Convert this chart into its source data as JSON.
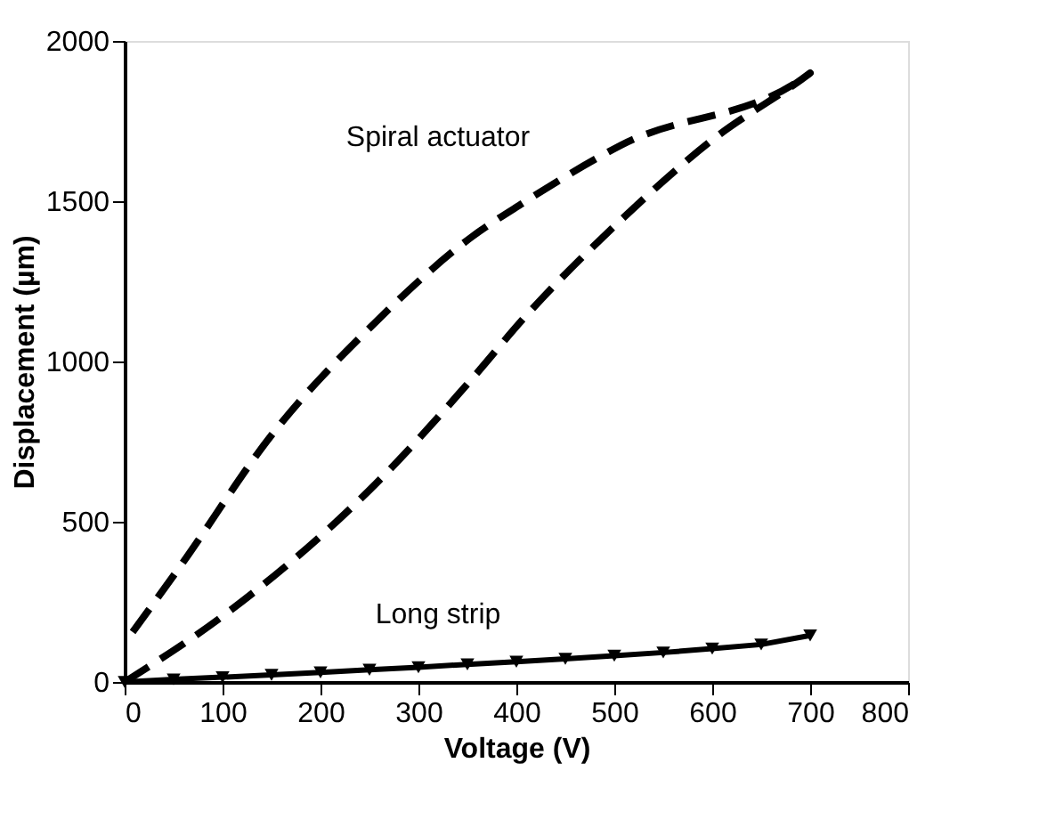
{
  "chart_data": {
    "type": "line",
    "xlabel": "Voltage (V)",
    "ylabel": "Displacement (µm)",
    "xlim": [
      0,
      800
    ],
    "xticks": [
      0,
      100,
      200,
      300,
      400,
      500,
      600,
      700,
      800
    ],
    "ylim": [
      0,
      2000
    ],
    "yticks": [
      0,
      500,
      1000,
      1500,
      2000
    ],
    "grid": false,
    "series": [
      {
        "color": "#000000",
        "line_style": "dashed",
        "marker": "none",
        "x": [
          0,
          103,
          256,
          355,
          407,
          507,
          600,
          700,
          507,
          407,
          355,
          256,
          150,
          57,
          0
        ],
        "values": [
          0,
          212,
          617,
          947,
          1133,
          1442,
          1691,
          1900,
          1675,
          1495,
          1390,
          1122,
          770,
          362,
          122
        ]
      },
      {
        "color": "#000000",
        "line_style": "solid",
        "marker": "triangle",
        "x": [
          0,
          50,
          100,
          150,
          200,
          250,
          300,
          350,
          400,
          450,
          500,
          550,
          600,
          650,
          700
        ],
        "values": [
          0,
          8,
          15,
          22,
          30,
          38,
          46,
          55,
          63,
          72,
          82,
          92,
          104,
          117,
          145
        ]
      }
    ],
    "annotations": [
      "Spiral actuator",
      "Long strip"
    ]
  }
}
